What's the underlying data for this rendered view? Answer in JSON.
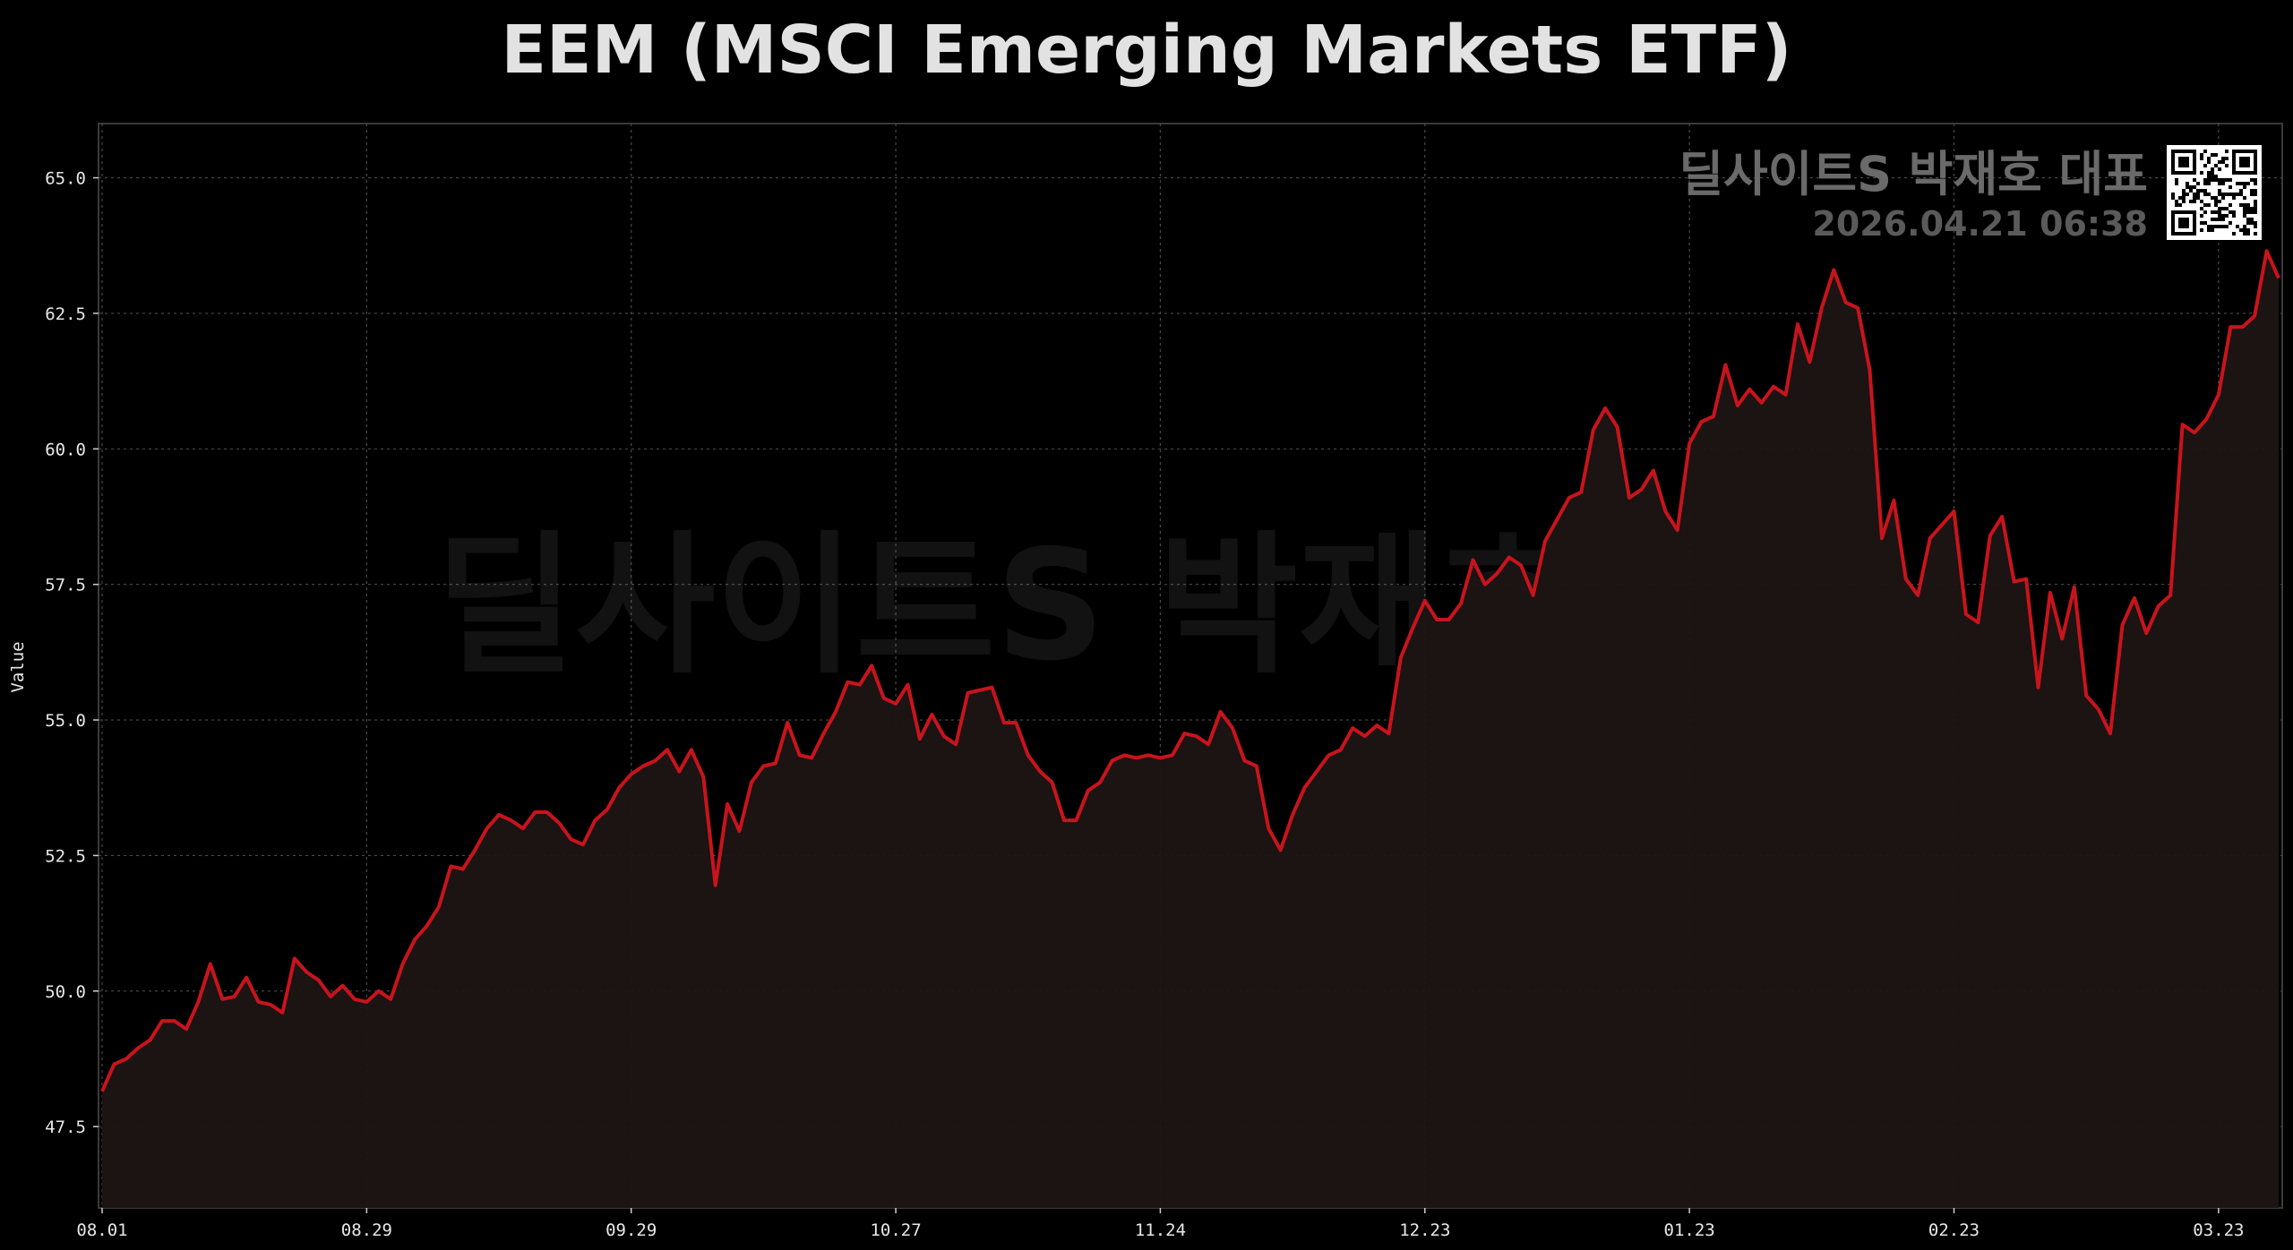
{
  "chart_data": {
    "type": "area",
    "title": "EEM (MSCI Emerging Markets ETF)",
    "ylabel": "Value",
    "xlabel": "",
    "ylim": [
      46.0,
      66.0
    ],
    "yticks": [
      47.5,
      50.0,
      52.5,
      55.0,
      57.5,
      60.0,
      62.5,
      65.0
    ],
    "xticks": [
      "08.01",
      "08.29",
      "09.29",
      "10.27",
      "11.24",
      "12.23",
      "01.23",
      "02.23",
      "03.23"
    ],
    "grid": true,
    "series": [
      {
        "color": "#c8141c",
        "fill": "#1e1414",
        "values": [
          48.15,
          48.65,
          48.75,
          48.95,
          49.1,
          49.45,
          49.45,
          49.3,
          49.8,
          50.5,
          49.85,
          49.9,
          50.25,
          49.8,
          49.75,
          49.6,
          50.6,
          50.35,
          50.2,
          49.9,
          50.1,
          49.85,
          49.8,
          50.0,
          49.85,
          50.5,
          50.95,
          51.2,
          51.55,
          52.3,
          52.25,
          52.6,
          53.0,
          53.25,
          53.15,
          53.0,
          53.3,
          53.3,
          53.1,
          52.8,
          52.7,
          53.15,
          53.35,
          53.75,
          54.0,
          54.15,
          54.25,
          54.45,
          54.05,
          54.45,
          53.95,
          51.95,
          53.45,
          52.95,
          53.85,
          54.15,
          54.2,
          54.95,
          54.35,
          54.3,
          54.75,
          55.15,
          55.7,
          55.65,
          56.0,
          55.4,
          55.3,
          55.65,
          54.65,
          55.1,
          54.7,
          54.55,
          55.5,
          55.55,
          55.6,
          54.95,
          54.95,
          54.35,
          54.05,
          53.85,
          53.15,
          53.15,
          53.7,
          53.85,
          54.25,
          54.35,
          54.3,
          54.35,
          54.3,
          54.35,
          54.75,
          54.7,
          54.55,
          55.15,
          54.85,
          54.25,
          54.15,
          53.0,
          52.6,
          53.25,
          53.75,
          54.05,
          54.35,
          54.45,
          54.85,
          54.7,
          54.9,
          54.75,
          56.15,
          56.7,
          57.2,
          56.85,
          56.85,
          57.15,
          57.95,
          57.5,
          57.7,
          58.0,
          57.85,
          57.3,
          58.3,
          58.7,
          59.1,
          59.2,
          60.35,
          60.75,
          60.4,
          59.1,
          59.25,
          59.6,
          58.85,
          58.5,
          60.1,
          60.5,
          60.6,
          61.55,
          60.8,
          61.1,
          60.85,
          61.15,
          61.0,
          62.3,
          61.6,
          62.6,
          63.3,
          62.7,
          62.6,
          61.45,
          58.35,
          59.05,
          57.6,
          57.3,
          58.35,
          58.6,
          58.85,
          56.95,
          56.8,
          58.4,
          58.75,
          57.55,
          57.6,
          55.6,
          57.35,
          56.5,
          57.45,
          55.45,
          55.2,
          54.75,
          56.75,
          57.25,
          56.6,
          57.1,
          57.3,
          60.45,
          60.3,
          60.55,
          61.0,
          62.25,
          62.25,
          62.45,
          63.65,
          63.15
        ]
      }
    ]
  },
  "watermark": {
    "center_text": "딜사이트S 박재호 대표",
    "corner_text": "딜사이트S 박재호 대표",
    "corner_date": "2026.04.21 06:38",
    "qr_icon": "qr-code-icon"
  }
}
